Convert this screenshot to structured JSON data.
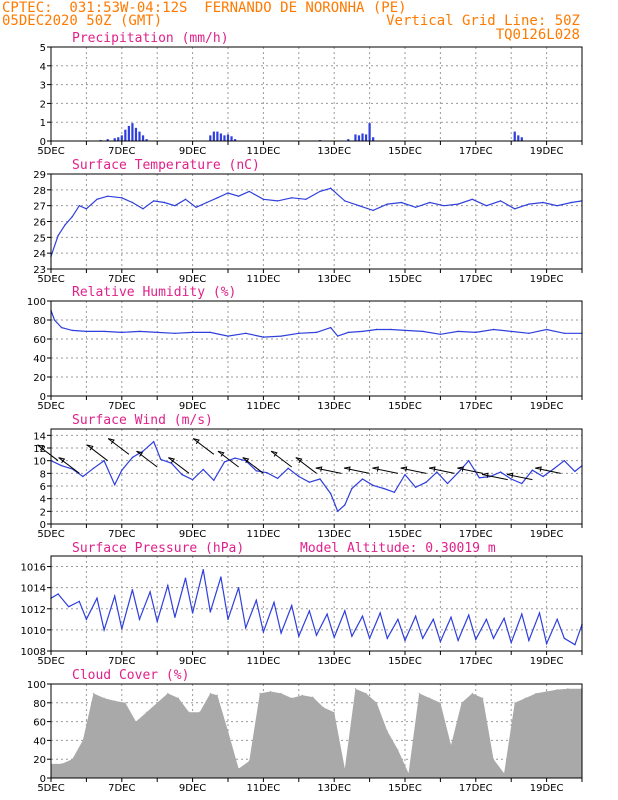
{
  "header": {
    "left_line1": "CPTEC:  031:53W-04:12S  FERNANDO DE NORONHA (PE)",
    "left_line2": "05DEC2020 50Z (GMT)",
    "right_line2": "Vertical Grid Line: 50Z",
    "right_line3": "TQ0126L028"
  },
  "colors": {
    "header": "#ff7a00",
    "title": "#e0218a",
    "line": "#2f3fdc",
    "cloud": "#a9a9a9",
    "grid": "#9a9a9a"
  },
  "x_ticks": [
    "5DEC",
    "7DEC",
    "9DEC",
    "11DEC",
    "13DEC",
    "15DEC",
    "17DEC",
    "19DEC"
  ],
  "chart_data": [
    {
      "type": "bar",
      "title": "Precipitation (mm/h)",
      "x_range_days": [
        5,
        20
      ],
      "ylim": [
        0,
        5
      ],
      "yticks": [
        0,
        1,
        2,
        3,
        4,
        5
      ],
      "x": [
        6.4,
        6.6,
        6.8,
        6.9,
        7.0,
        7.1,
        7.2,
        7.3,
        7.4,
        7.5,
        7.6,
        7.7,
        9.5,
        9.6,
        9.7,
        9.8,
        9.9,
        10.0,
        10.1,
        10.2,
        12.6,
        13.4,
        13.6,
        13.7,
        13.8,
        13.9,
        14.0,
        14.1,
        18.1,
        18.2,
        18.3
      ],
      "values": [
        0.05,
        0.1,
        0.15,
        0.2,
        0.3,
        0.6,
        0.8,
        0.95,
        0.7,
        0.5,
        0.3,
        0.1,
        0.3,
        0.5,
        0.5,
        0.4,
        0.3,
        0.35,
        0.25,
        0.1,
        0.05,
        0.1,
        0.35,
        0.3,
        0.4,
        0.35,
        0.95,
        0.2,
        0.5,
        0.3,
        0.2
      ]
    },
    {
      "type": "line",
      "title": "Surface Temperature (nC)",
      "x_range_days": [
        5,
        20
      ],
      "ylim": [
        23,
        29
      ],
      "yticks": [
        23,
        24,
        25,
        26,
        27,
        28,
        29
      ],
      "x": [
        5.0,
        5.2,
        5.4,
        5.6,
        5.8,
        6.0,
        6.3,
        6.6,
        7.0,
        7.3,
        7.6,
        7.9,
        8.2,
        8.5,
        8.8,
        9.1,
        9.4,
        9.7,
        10.0,
        10.3,
        10.6,
        11.0,
        11.4,
        11.8,
        12.2,
        12.6,
        12.9,
        13.3,
        13.7,
        14.1,
        14.5,
        14.9,
        15.3,
        15.7,
        16.1,
        16.5,
        16.9,
        17.3,
        17.7,
        18.1,
        18.5,
        18.9,
        19.3,
        19.7,
        20.0
      ],
      "values": [
        23.8,
        25.1,
        25.8,
        26.3,
        27.0,
        26.8,
        27.4,
        27.6,
        27.5,
        27.2,
        26.8,
        27.3,
        27.2,
        27.0,
        27.4,
        26.9,
        27.2,
        27.5,
        27.8,
        27.6,
        27.9,
        27.4,
        27.3,
        27.5,
        27.4,
        27.9,
        28.1,
        27.3,
        27.0,
        26.7,
        27.1,
        27.2,
        26.9,
        27.2,
        27.0,
        27.1,
        27.4,
        27.0,
        27.3,
        26.8,
        27.1,
        27.2,
        27.0,
        27.2,
        27.3
      ]
    },
    {
      "type": "line",
      "title": "Relative Humidity (%)",
      "x_range_days": [
        5,
        20
      ],
      "ylim": [
        0,
        100
      ],
      "yticks": [
        0,
        20,
        40,
        60,
        80,
        100
      ],
      "x": [
        5.0,
        5.1,
        5.3,
        5.6,
        6.0,
        6.5,
        7.0,
        7.5,
        8.0,
        8.5,
        9.0,
        9.5,
        10.0,
        10.5,
        11.0,
        11.5,
        12.0,
        12.5,
        12.9,
        13.1,
        13.4,
        13.8,
        14.2,
        14.6,
        15.0,
        15.5,
        16.0,
        16.5,
        17.0,
        17.5,
        18.0,
        18.5,
        19.0,
        19.5,
        20.0
      ],
      "values": [
        90,
        80,
        72,
        69,
        68,
        68,
        67,
        68,
        67,
        66,
        67,
        67,
        63,
        66,
        62,
        63,
        66,
        67,
        72,
        63,
        67,
        68,
        70,
        70,
        69,
        68,
        65,
        68,
        67,
        70,
        68,
        66,
        70,
        66,
        66
      ]
    },
    {
      "type": "line",
      "title": "Surface Wind (m/s)",
      "x_range_days": [
        5,
        20
      ],
      "ylim": [
        0,
        15
      ],
      "yticks": [
        0,
        2,
        4,
        6,
        8,
        10,
        12,
        14
      ],
      "x": [
        5.0,
        5.3,
        5.6,
        5.9,
        6.2,
        6.5,
        6.8,
        7.0,
        7.3,
        7.6,
        7.9,
        8.1,
        8.4,
        8.7,
        9.0,
        9.3,
        9.6,
        9.9,
        10.2,
        10.5,
        10.8,
        11.1,
        11.4,
        11.7,
        12.0,
        12.3,
        12.6,
        12.9,
        13.1,
        13.3,
        13.5,
        13.8,
        14.1,
        14.4,
        14.7,
        15.0,
        15.3,
        15.6,
        15.9,
        16.2,
        16.5,
        16.8,
        17.1,
        17.4,
        17.7,
        18.0,
        18.3,
        18.6,
        18.9,
        19.2,
        19.5,
        19.8,
        20.0
      ],
      "values": [
        10.0,
        9.2,
        8.7,
        7.5,
        8.8,
        10.0,
        6.2,
        8.5,
        10.5,
        11.5,
        13.0,
        10.2,
        9.6,
        7.8,
        7.0,
        8.6,
        6.9,
        9.8,
        10.4,
        10.0,
        8.4,
        8.1,
        7.2,
        8.8,
        7.5,
        6.6,
        7.1,
        4.8,
        2.0,
        3.0,
        5.6,
        7.1,
        6.1,
        5.6,
        5.0,
        7.8,
        5.8,
        6.6,
        8.2,
        6.4,
        8.1,
        10.0,
        7.3,
        7.5,
        8.2,
        7.1,
        6.4,
        8.5,
        7.5,
        8.7,
        10.0,
        8.3,
        9.2
      ],
      "barbs": [
        {
          "x": 5.2,
          "value": 10
        },
        {
          "x": 5.8,
          "value": 8
        },
        {
          "x": 6.6,
          "value": 10
        },
        {
          "x": 7.2,
          "value": 11
        },
        {
          "x": 8.0,
          "value": 9
        },
        {
          "x": 8.9,
          "value": 8
        },
        {
          "x": 9.6,
          "value": 11
        },
        {
          "x": 10.3,
          "value": 9
        },
        {
          "x": 11.0,
          "value": 8
        },
        {
          "x": 11.8,
          "value": 9
        },
        {
          "x": 12.5,
          "value": 8
        },
        {
          "x": 13.2,
          "value": 8
        },
        {
          "x": 14.0,
          "value": 8
        },
        {
          "x": 14.8,
          "value": 8
        },
        {
          "x": 15.6,
          "value": 8
        },
        {
          "x": 16.4,
          "value": 8
        },
        {
          "x": 17.2,
          "value": 8
        },
        {
          "x": 17.9,
          "value": 7
        },
        {
          "x": 18.6,
          "value": 7
        },
        {
          "x": 19.4,
          "value": 8
        }
      ]
    },
    {
      "type": "line",
      "title": "Surface Pressure (hPa)",
      "annotation": "Model Altitude: 0.30019 m",
      "x_range_days": [
        5,
        20
      ],
      "ylim": [
        1008,
        1017
      ],
      "yticks": [
        1008,
        1010,
        1012,
        1014,
        1016
      ],
      "x": [
        5.0,
        5.2,
        5.5,
        5.8,
        6.0,
        6.3,
        6.5,
        6.8,
        7.0,
        7.3,
        7.5,
        7.8,
        8.0,
        8.3,
        8.5,
        8.8,
        9.0,
        9.3,
        9.5,
        9.8,
        10.0,
        10.3,
        10.5,
        10.8,
        11.0,
        11.3,
        11.5,
        11.8,
        12.0,
        12.3,
        12.5,
        12.8,
        13.0,
        13.3,
        13.5,
        13.8,
        14.0,
        14.3,
        14.5,
        14.8,
        15.0,
        15.3,
        15.5,
        15.8,
        16.0,
        16.3,
        16.5,
        16.8,
        17.0,
        17.3,
        17.5,
        17.8,
        18.0,
        18.3,
        18.5,
        18.8,
        19.0,
        19.3,
        19.5,
        19.8,
        20.0
      ],
      "values": [
        1013.0,
        1013.4,
        1012.2,
        1012.7,
        1011.0,
        1013.0,
        1010.0,
        1013.2,
        1010.1,
        1013.8,
        1011.0,
        1013.6,
        1010.8,
        1014.2,
        1011.2,
        1014.9,
        1011.6,
        1015.7,
        1011.7,
        1015.0,
        1011.0,
        1014.0,
        1010.2,
        1012.8,
        1009.8,
        1012.6,
        1009.7,
        1012.3,
        1009.4,
        1011.8,
        1009.5,
        1011.5,
        1009.3,
        1011.8,
        1009.4,
        1011.3,
        1009.2,
        1011.6,
        1009.2,
        1011.0,
        1009.0,
        1011.3,
        1009.2,
        1011.0,
        1008.9,
        1011.2,
        1009.0,
        1011.4,
        1009.1,
        1011.0,
        1009.2,
        1011.1,
        1008.8,
        1011.5,
        1009.0,
        1011.6,
        1008.7,
        1011.0,
        1009.2,
        1008.6,
        1010.5
      ]
    },
    {
      "type": "area",
      "title": "Cloud Cover (%)",
      "x_range_days": [
        5,
        20
      ],
      "ylim": [
        0,
        100
      ],
      "yticks": [
        0,
        20,
        40,
        60,
        80,
        100
      ],
      "x": [
        5.0,
        5.3,
        5.6,
        5.9,
        6.2,
        6.5,
        6.8,
        7.1,
        7.4,
        7.7,
        8.0,
        8.3,
        8.6,
        8.9,
        9.2,
        9.5,
        9.7,
        10.0,
        10.3,
        10.6,
        10.9,
        11.2,
        11.5,
        11.8,
        12.1,
        12.4,
        12.7,
        13.0,
        13.3,
        13.6,
        13.9,
        14.2,
        14.5,
        14.8,
        15.1,
        15.4,
        15.7,
        16.0,
        16.3,
        16.6,
        16.9,
        17.2,
        17.5,
        17.8,
        18.1,
        18.4,
        18.7,
        19.0,
        19.3,
        19.6,
        20.0
      ],
      "values": [
        15,
        15,
        20,
        40,
        90,
        85,
        82,
        80,
        60,
        70,
        80,
        90,
        85,
        70,
        70,
        90,
        88,
        50,
        10,
        18,
        90,
        92,
        90,
        85,
        88,
        86,
        75,
        70,
        10,
        95,
        90,
        80,
        50,
        30,
        5,
        90,
        85,
        80,
        35,
        80,
        90,
        85,
        20,
        5,
        80,
        85,
        90,
        92,
        94,
        95,
        95
      ]
    }
  ]
}
